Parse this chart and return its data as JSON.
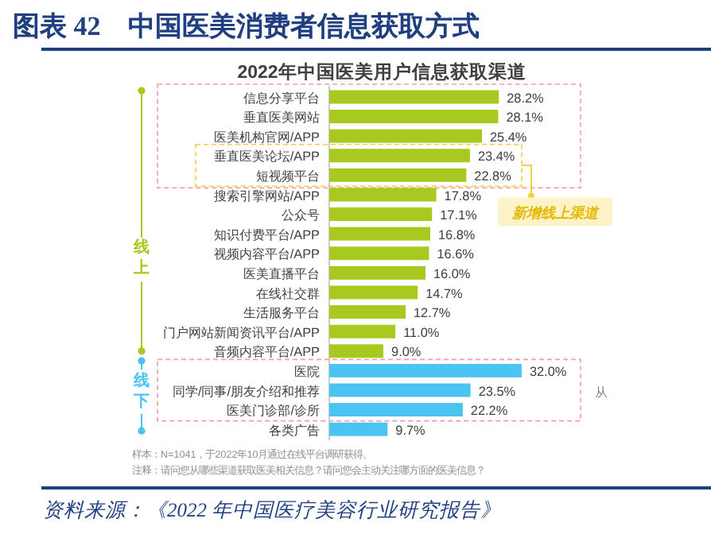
{
  "chart_data": {
    "type": "bar",
    "orientation": "horizontal",
    "title": "图表 42　中国医美消费者信息获取方式",
    "subtitle": "2022年中国医美用户信息获取渠道",
    "categories": [
      "信息分享平台",
      "垂直医美网站",
      "医美机构官网/APP",
      "垂直医美论坛/APP",
      "短视频平台",
      "搜索引擎网站/APP",
      "公众号",
      "知识付费平台/APP",
      "视频内容平台/APP",
      "医美直播平台",
      "在线社交群",
      "生活服务平台",
      "门户网站新闻资讯平台/APP",
      "音频内容平台/APP",
      "医院",
      "同学/同事/朋友介绍和推荐",
      "医美门诊部/诊所",
      "各类广告"
    ],
    "values": [
      28.2,
      28.1,
      25.4,
      23.4,
      22.8,
      17.8,
      17.1,
      16.8,
      16.6,
      16.0,
      14.7,
      12.7,
      11.0,
      9.0,
      32.0,
      23.5,
      22.2,
      9.7
    ],
    "value_labels": [
      "28.2%",
      "28.1%",
      "25.4%",
      "23.4%",
      "22.8%",
      "17.8%",
      "17.1%",
      "16.8%",
      "16.6%",
      "16.0%",
      "14.7%",
      "12.7%",
      "11.0%",
      "9.0%",
      "32.0%",
      "23.5%",
      "22.2%",
      "9.7%"
    ],
    "colors": [
      "#a8c920",
      "#a8c920",
      "#a8c920",
      "#a8c920",
      "#a8c920",
      "#a8c920",
      "#a8c920",
      "#a8c920",
      "#a8c920",
      "#a8c920",
      "#a8c920",
      "#a8c920",
      "#a8c920",
      "#a8c920",
      "#4cc4f2",
      "#4cc4f2",
      "#4cc4f2",
      "#4cc4f2"
    ],
    "annotations": [
      "线上",
      "线下",
      "新增线上渠道",
      "从",
      "样本：N=1041，于2022年10月通过在线平台调研获得。",
      "注释：请问您从哪些渠道获取医美相关信息？请问您会主动关注哪方面的医美信息？",
      "资料来源：《2022 年中国医疗美容行业研究报告》"
    ]
  }
}
